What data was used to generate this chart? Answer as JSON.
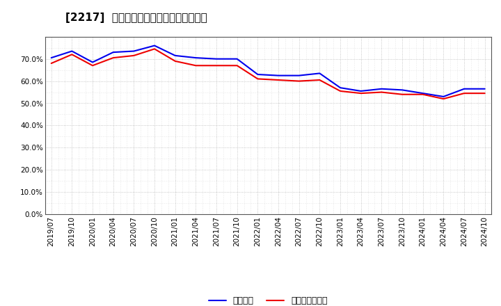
{
  "title": "[2217]  固定比率、固定長期適合率の推移",
  "x_labels": [
    "2019/07",
    "2019/10",
    "2020/01",
    "2020/04",
    "2020/07",
    "2020/10",
    "2021/01",
    "2021/04",
    "2021/07",
    "2021/10",
    "2022/01",
    "2022/04",
    "2022/07",
    "2022/10",
    "2023/01",
    "2023/04",
    "2023/07",
    "2023/10",
    "2024/01",
    "2024/04",
    "2024/07",
    "2024/10"
  ],
  "fixed_ratio": [
    70.5,
    73.5,
    68.5,
    73.0,
    73.5,
    76.0,
    71.5,
    70.5,
    70.0,
    70.0,
    63.0,
    62.5,
    62.5,
    63.5,
    57.0,
    55.5,
    56.5,
    56.0,
    54.5,
    53.0,
    56.5,
    56.5
  ],
  "fixed_long_term": [
    68.0,
    72.0,
    67.0,
    70.5,
    71.5,
    74.5,
    69.0,
    67.0,
    67.0,
    67.0,
    61.0,
    60.5,
    60.0,
    60.5,
    55.5,
    54.5,
    55.0,
    54.0,
    54.0,
    52.0,
    54.5,
    54.5
  ],
  "line1_color": "#0000ee",
  "line2_color": "#ee0000",
  "line1_label": "固定比率",
  "line2_label": "固定長期適合率",
  "ylim": [
    0,
    80
  ],
  "yticks": [
    0,
    10,
    20,
    30,
    40,
    50,
    60,
    70,
    80
  ],
  "ytick_labels": [
    "0.0%",
    "10.0%",
    "20.0%",
    "30.0%",
    "40.0%",
    "50.0%",
    "60.0%",
    "70.0%",
    ""
  ],
  "bg_color": "#ffffff",
  "plot_bg_color": "#ffffff",
  "grid_color": "#999999",
  "title_fontsize": 11,
  "axis_fontsize": 7.5,
  "legend_fontsize": 9
}
